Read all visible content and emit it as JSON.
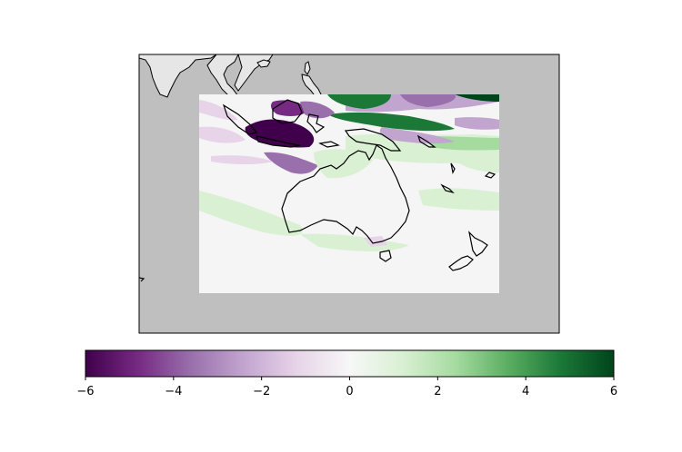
{
  "colorbar": {
    "min": -6,
    "max": 6,
    "colormap": "PRGn",
    "colors": [
      "#40004b",
      "#762a83",
      "#9970ab",
      "#c2a5cf",
      "#e7d4e8",
      "#f7f7f7",
      "#d9f0d3",
      "#a6dba0",
      "#5aae61",
      "#1b7837",
      "#00441b"
    ],
    "ticks": [
      {
        "value": -6,
        "label": "−6"
      },
      {
        "value": -4,
        "label": "−4"
      },
      {
        "value": -2,
        "label": "−2"
      },
      {
        "value": 0,
        "label": "0"
      },
      {
        "value": 2,
        "label": "2"
      },
      {
        "value": 4,
        "label": "4"
      },
      {
        "value": 6,
        "label": "6"
      }
    ]
  },
  "map": {
    "background_color": "#bfbfbf",
    "land_color": "#e6e6e6",
    "data_background_color": "#f5f5f5",
    "coastline_color": "#000000"
  }
}
